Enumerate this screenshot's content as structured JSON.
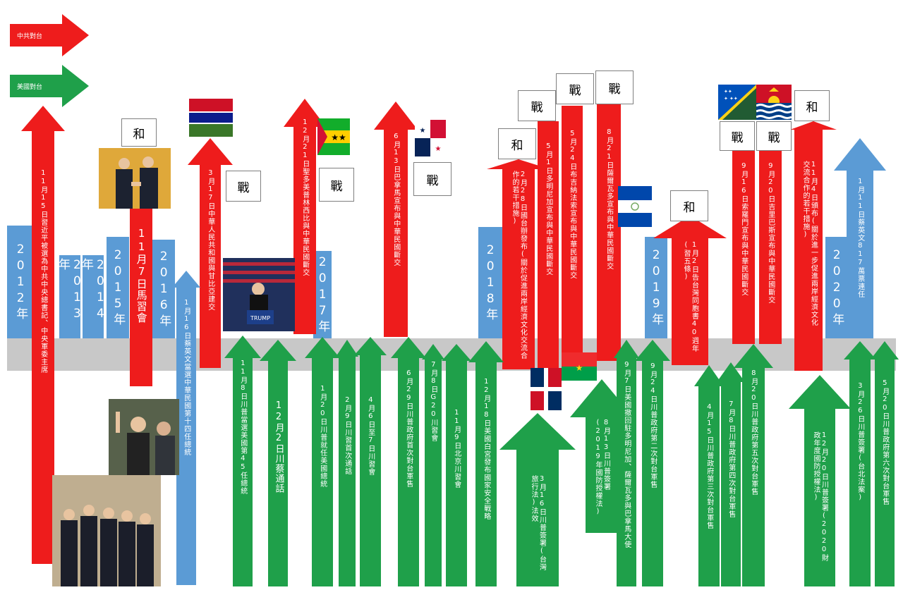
{
  "legend": {
    "red_label": "中共對台",
    "green_label": "美國對台",
    "red_color": "#ee1c1c",
    "green_color": "#1fa04a"
  },
  "years": {
    "y2012": "2012年",
    "y2013": "2013年",
    "y2014": "2014年",
    "y2015": "2015年",
    "y2016": "2016年",
    "y2017": "2017年",
    "y2018": "2018年",
    "y2019": "2019年",
    "y2020": "2020年"
  },
  "red_events": {
    "e2012": "11月15日習近平被選為中共中央總書記、中央軍委主席",
    "e2015": "11月7日馬習會",
    "e2016": "3月17日中華人民共和國與甘比亞建交",
    "e2016b": "12月21日聖多美普林西比與中華民國斷交",
    "e2017": "6月13日巴拿馬宣布與中華民國斷交",
    "e2018a": "2月28日國台辦發布(關於促進兩岸經濟文化交流合作的若干措施)",
    "e2018b": "5月1日多明尼加宣布與中華民國斷交",
    "e2018c": "5月24日布吉納法索宣布與中華民國斷交",
    "e2018d": "8月21日薩爾瓦多宣布與中華民國斷交",
    "e2019a": "1月2日告台灣同胞書40週年(習五條)",
    "e2019b": "9月16日索羅門宣布與中華民國斷交",
    "e2019c": "9月20日吉里巴斯宣布與中華民國斷交",
    "e2019d": "11月4日頒布(關於進一步促進兩岸經濟文化交流合作的若干措施)"
  },
  "blue_events": {
    "b2016": "1月16日蔡英文當選中華民國第十四任總統",
    "b2020": "1月11日蔡英文817萬票連任"
  },
  "green_events": {
    "g1": "11月8日川普當選美國第45任總統",
    "g2": "12月2日川蔡通話",
    "g3": "1月20日川普就任美國總統",
    "g4": "2月9日川習首次通話",
    "g5": "4月6日至7日川習會",
    "g6": "6月29日川普政府首次對台軍售",
    "g7": "7月8日G20川習會",
    "g8": "11月9日北京川習會",
    "g9": "12月18日美國白宮發布國家安全戰略",
    "g10": "3月16日川普簽署(台灣旅行法)法效",
    "g11": "8月13日川普簽署(2019年國防授權法)",
    "g12": "9月7日美國撤回駐多明尼加、薩爾瓦多與巴拿馬大使",
    "g13": "9月24日川普政府第二次對台軍售",
    "g14": "4月15日川普政府第三次對台軍售",
    "g15": "7月8日川普政府第四次對台軍售",
    "g16": "8月20日川普政府第五次對台軍售",
    "g17": "12月20日川普簽署(2020財政年度國防授權法)",
    "g18": "3月26日川普簽署(台北法案)",
    "g19": "5月20日川普政府第六次對台軍售"
  },
  "badges": {
    "he": "和",
    "zhan": "戰"
  },
  "icons": {
    "photo1": "xi-ma-handshake-photo",
    "photo2": "trump-rally-photo",
    "photo3": "tsai-victory-photo",
    "photo4": "politburo-group-photo"
  }
}
